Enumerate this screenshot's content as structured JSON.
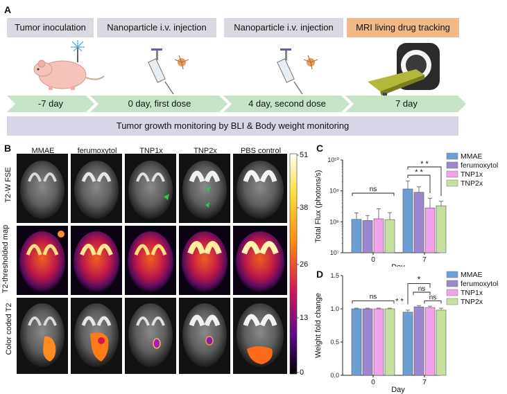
{
  "panel_a": {
    "letter": "A",
    "stages": [
      "Tumor inoculation",
      "Nanoparticle i.v. injection",
      "Nanoparticle i.v. injection",
      "MRI living drug tracking"
    ],
    "timeline": [
      "-7 day",
      "0 day, first dose",
      "4 day, second dose",
      "7 day"
    ],
    "monitoring": "Tumor growth monitoring by BLI & Body weight monitoring"
  },
  "panel_b": {
    "letter": "B",
    "columns": [
      "MMAE",
      "ferumoxytol",
      "TNP1x",
      "TNP2x",
      "PBS control"
    ],
    "rows": [
      "T2-W FSE",
      "T2-thresholded map",
      "Color coded T2"
    ],
    "colorbar_ticks": [
      "51",
      "38",
      "26",
      "13",
      "0"
    ]
  },
  "colors": {
    "MMAE": "#6c9fd3",
    "ferumoxytol": "#9d87cf",
    "TNP1x": "#f1a3ea",
    "TNP2x": "#c5e1a0",
    "stage_grey": "#d9d9e2",
    "stage_orange": "#f1b987",
    "timeline_green": "#c6e3c8"
  },
  "chart_data": [
    {
      "panel": "C",
      "type": "bar",
      "categories": [
        "0",
        "7"
      ],
      "xlabel": "Day",
      "ylabel": "Total Flux (photons/s)",
      "yscale": "log",
      "ylim": [
        10000000,
        10000000000
      ],
      "ytick_labels": [
        "10⁷",
        "10⁸",
        "10⁹",
        "10¹⁰"
      ],
      "series": [
        {
          "name": "MMAE",
          "values": [
            120000000,
            1150000000
          ],
          "errors": [
            75000000,
            950000000
          ]
        },
        {
          "name": "ferumoxytol",
          "values": [
            110000000,
            900000000
          ],
          "errors": [
            50000000,
            450000000
          ]
        },
        {
          "name": "TNP1x",
          "values": [
            125000000,
            280000000
          ],
          "errors": [
            140000000,
            300000000
          ]
        },
        {
          "name": "TNP2x",
          "values": [
            118000000,
            330000000
          ],
          "errors": [
            80000000,
            130000000
          ]
        }
      ],
      "annotations": [
        "ns",
        "* *",
        "* *"
      ]
    },
    {
      "panel": "D",
      "type": "bar",
      "categories": [
        "0",
        "7"
      ],
      "xlabel": "Day",
      "ylabel": "Weight fold change",
      "ylim": [
        0,
        1.5
      ],
      "yticks": [
        "0.0",
        "0.5",
        "1.0",
        "1.5"
      ],
      "series": [
        {
          "name": "MMAE",
          "values": [
            1.0,
            0.95
          ],
          "errors": [
            0.01,
            0.03
          ]
        },
        {
          "name": "ferumoxytol",
          "values": [
            1.0,
            1.03
          ],
          "errors": [
            0.01,
            0.02
          ]
        },
        {
          "name": "TNP1x",
          "values": [
            1.0,
            1.02
          ],
          "errors": [
            0.01,
            0.02
          ]
        },
        {
          "name": "TNP2x",
          "values": [
            1.0,
            0.98
          ],
          "errors": [
            0.01,
            0.03
          ]
        }
      ],
      "annotations": [
        "ns",
        "* *",
        "*",
        "ns",
        "ns"
      ]
    }
  ]
}
